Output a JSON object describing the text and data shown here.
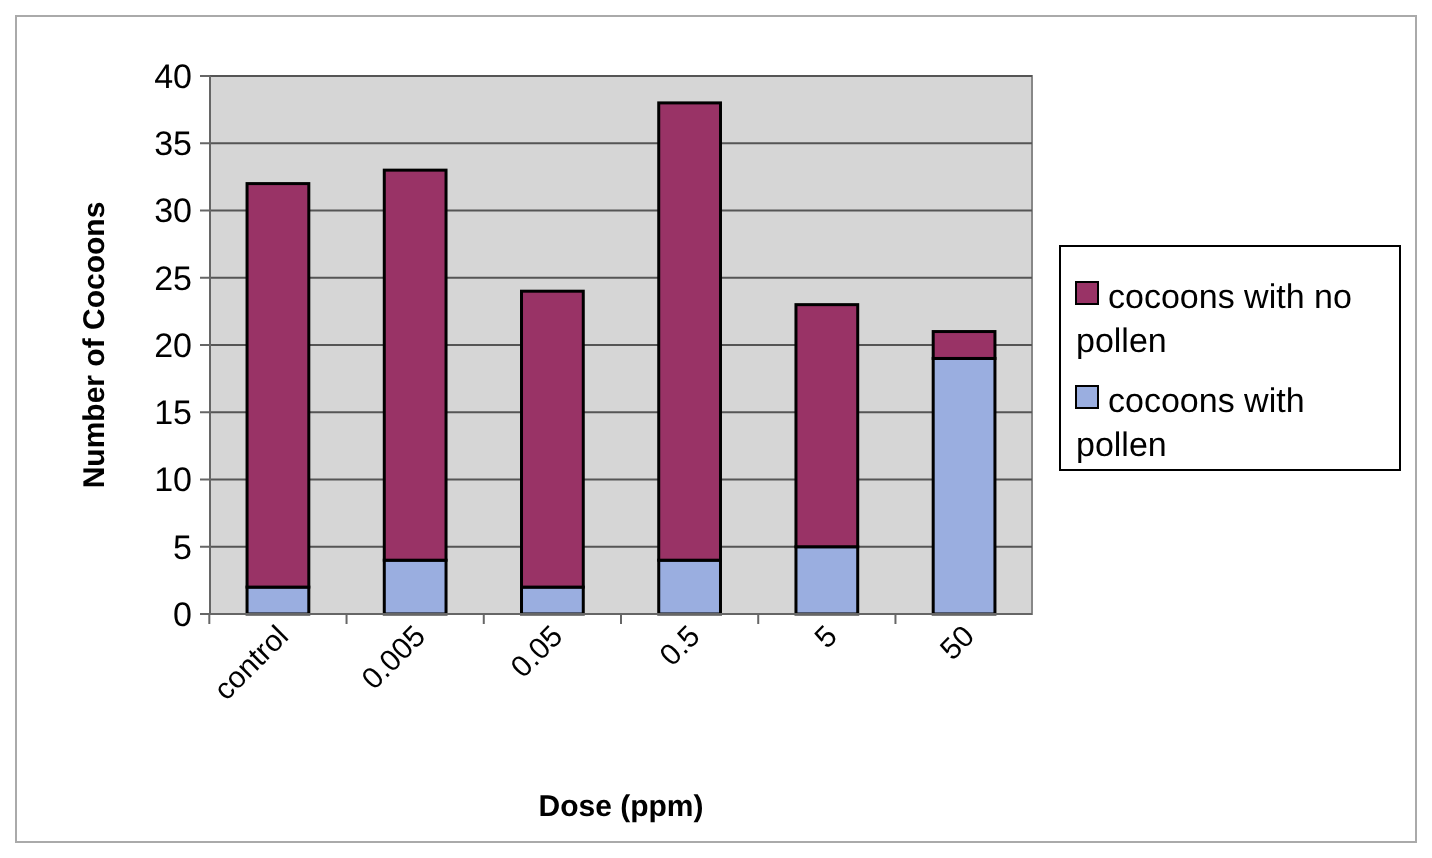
{
  "chart_data": {
    "type": "bar",
    "stacked": true,
    "xlabel": "Dose (ppm)",
    "ylabel": "Number of Cocoons",
    "categories": [
      "control",
      "0.005",
      "0.05",
      "0.5",
      "5",
      "50"
    ],
    "series": [
      {
        "name": "cocoons with pollen",
        "color": "#9aaee0",
        "values": [
          2,
          4,
          2,
          4,
          5,
          19
        ]
      },
      {
        "name": "cocoons with no pollen",
        "color": "#993366",
        "values": [
          30,
          29,
          22,
          34,
          18,
          2
        ]
      }
    ],
    "ylim": [
      0,
      40
    ],
    "yticks": [
      0,
      5,
      10,
      15,
      20,
      25,
      30,
      35,
      40
    ],
    "grid": "y",
    "legend": "right"
  }
}
